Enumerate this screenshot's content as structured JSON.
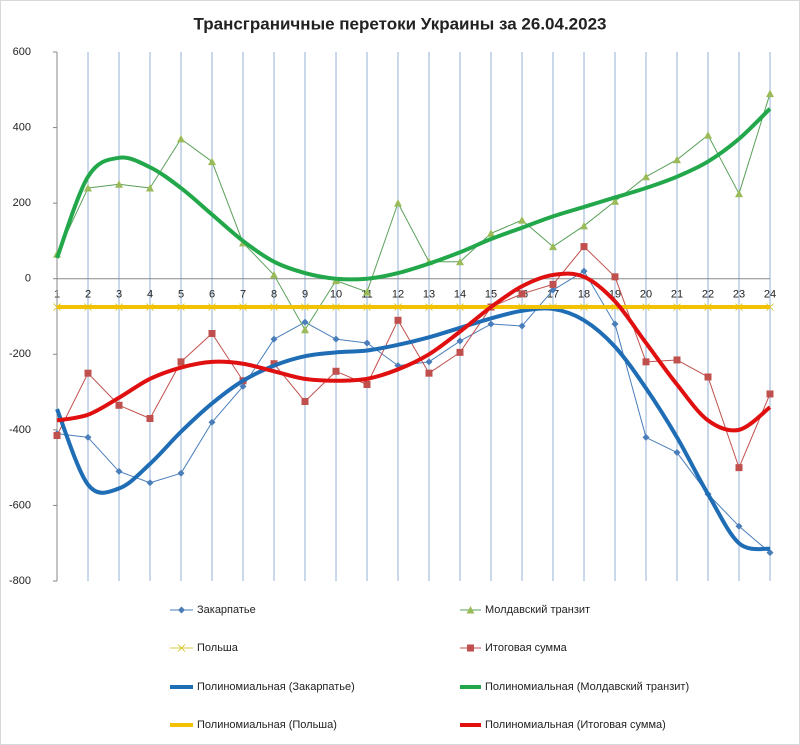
{
  "chart_data": {
    "type": "line",
    "title": "Трансграничные перетоки Украины за 26.04.2023",
    "categories": [
      "1",
      "2",
      "3",
      "4",
      "5",
      "6",
      "7",
      "8",
      "9",
      "10",
      "11",
      "12",
      "13",
      "14",
      "15",
      "16",
      "17",
      "18",
      "19",
      "20",
      "21",
      "22",
      "23",
      "24"
    ],
    "ylim": [
      -800,
      600
    ],
    "yticks": [
      600,
      400,
      200,
      0,
      -200,
      -400,
      -600,
      -800
    ],
    "grid": "x",
    "series": [
      {
        "name": "Закарпатье",
        "color": "#4a7ebb",
        "marker": "diamond",
        "width": 1,
        "values": [
          -410,
          -420,
          -510,
          -540,
          -515,
          -380,
          -285,
          -160,
          -115,
          -160,
          -170,
          -230,
          -220,
          -165,
          -120,
          -125,
          -30,
          20,
          -120,
          -420,
          -460,
          -570,
          -655,
          -725
        ]
      },
      {
        "name": "Молдавский транзит",
        "color": "#5aa05a",
        "marker": "triangle",
        "width": 1,
        "values": [
          65,
          240,
          250,
          240,
          370,
          310,
          95,
          10,
          -135,
          -5,
          -35,
          200,
          45,
          45,
          120,
          155,
          85,
          140,
          205,
          270,
          315,
          380,
          225,
          490
        ]
      },
      {
        "name": "Польша",
        "color": "#d8c840",
        "marker": "x",
        "width": 1,
        "values": [
          -75,
          -75,
          -75,
          -75,
          -75,
          -75,
          -75,
          -75,
          -75,
          -75,
          -75,
          -75,
          -75,
          -75,
          -75,
          -75,
          -75,
          -75,
          -75,
          -75,
          -75,
          -75,
          -75,
          -75
        ]
      },
      {
        "name": "Итоговая сумма",
        "color": "#c0504d",
        "marker": "square",
        "width": 1,
        "values": [
          -415,
          -250,
          -335,
          -370,
          -220,
          -145,
          -270,
          -225,
          -325,
          -245,
          -280,
          -110,
          -250,
          -195,
          -75,
          -40,
          -15,
          85,
          5,
          -220,
          -215,
          -260,
          -500,
          -305
        ]
      },
      {
        "name": "Полиномиальная (Закарпатье)",
        "color": "#1f6db5",
        "marker": "none",
        "width": 4,
        "values": [
          -345,
          -545,
          -555,
          -490,
          -405,
          -330,
          -270,
          -230,
          -205,
          -195,
          -190,
          -175,
          -155,
          -130,
          -105,
          -85,
          -80,
          -110,
          -180,
          -290,
          -420,
          -570,
          -700,
          -715
        ]
      },
      {
        "name": "Полиномиальная (Молдавский транзит)",
        "color": "#22a84a",
        "marker": "none",
        "width": 4,
        "values": [
          55,
          270,
          320,
          295,
          240,
          170,
          100,
          45,
          15,
          0,
          0,
          15,
          40,
          70,
          105,
          135,
          165,
          190,
          215,
          240,
          270,
          310,
          370,
          450
        ]
      },
      {
        "name": "Полиномиальная (Польша)",
        "color": "#f2c200",
        "marker": "none",
        "width": 4,
        "values": [
          -75,
          -75,
          -75,
          -75,
          -75,
          -75,
          -75,
          -75,
          -75,
          -75,
          -75,
          -75,
          -75,
          -75,
          -75,
          -75,
          -75,
          -75,
          -75,
          -75,
          -75,
          -75,
          -75,
          -75
        ]
      },
      {
        "name": "Полиномиальная (Итоговая сумма)",
        "color": "#e01010",
        "marker": "none",
        "width": 4,
        "values": [
          -375,
          -360,
          -315,
          -265,
          -235,
          -220,
          -225,
          -245,
          -265,
          -270,
          -265,
          -240,
          -200,
          -140,
          -75,
          -20,
          10,
          5,
          -60,
          -170,
          -280,
          -375,
          -400,
          -340
        ]
      }
    ]
  }
}
